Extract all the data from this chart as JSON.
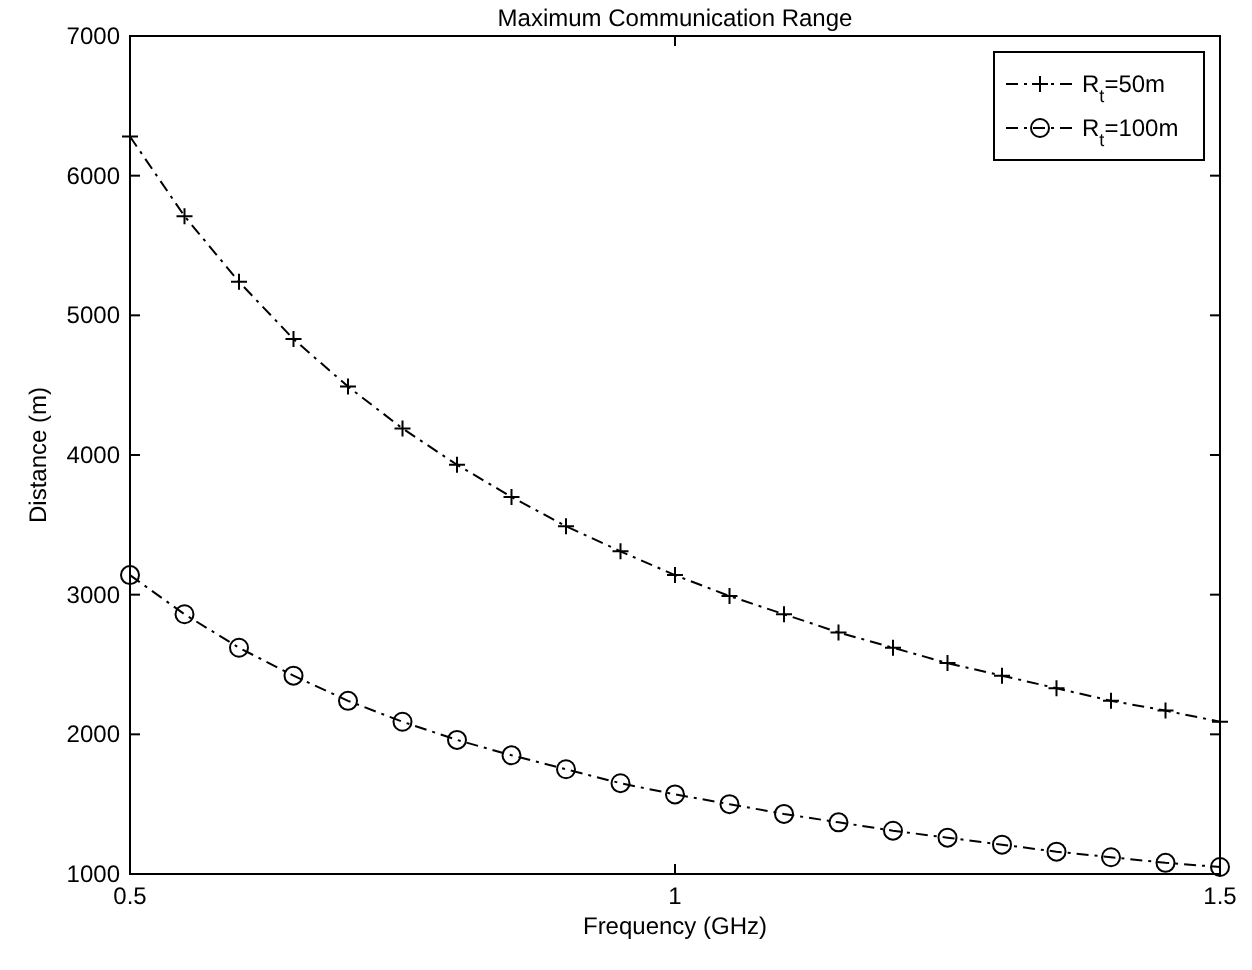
{
  "chart_data": {
    "type": "line",
    "title": "Maximum Communication Range",
    "xlabel": "Frequency (GHz)",
    "ylabel": "Distance (m)",
    "x": [
      0.5,
      0.55,
      0.6,
      0.65,
      0.7,
      0.75,
      0.8,
      0.85,
      0.9,
      0.95,
      1,
      1.05,
      1.1,
      1.15,
      1.2,
      1.25,
      1.3,
      1.35,
      1.4,
      1.45,
      1.5
    ],
    "series": [
      {
        "name": "R$_{t}$=50m",
        "color": "#000000",
        "marker": "cross",
        "values": [
          6280,
          5710,
          5240,
          4830,
          4490,
          4190,
          3930,
          3700,
          3490,
          3310,
          3140,
          2990,
          2860,
          2730,
          2620,
          2510,
          2420,
          2330,
          2240,
          2170,
          2090
        ]
      },
      {
        "name": "R$_{t}$=100m",
        "color": "#000000",
        "marker": "circle",
        "values": [
          3140,
          2860,
          2620,
          2420,
          2240,
          2090,
          1960,
          1850,
          1750,
          1650,
          1570,
          1500,
          1430,
          1370,
          1310,
          1260,
          1210,
          1160,
          1120,
          1080,
          1050
        ]
      }
    ],
    "xlim": [
      0.5,
      1.5
    ],
    "xticks": [
      0.5,
      1,
      1.5
    ],
    "ylim": [
      1000,
      7000
    ],
    "yticks": [
      1000,
      2000,
      3000,
      4000,
      5000,
      6000,
      7000
    ],
    "line_style": "dashed",
    "grid": false,
    "legend": "top right"
  }
}
